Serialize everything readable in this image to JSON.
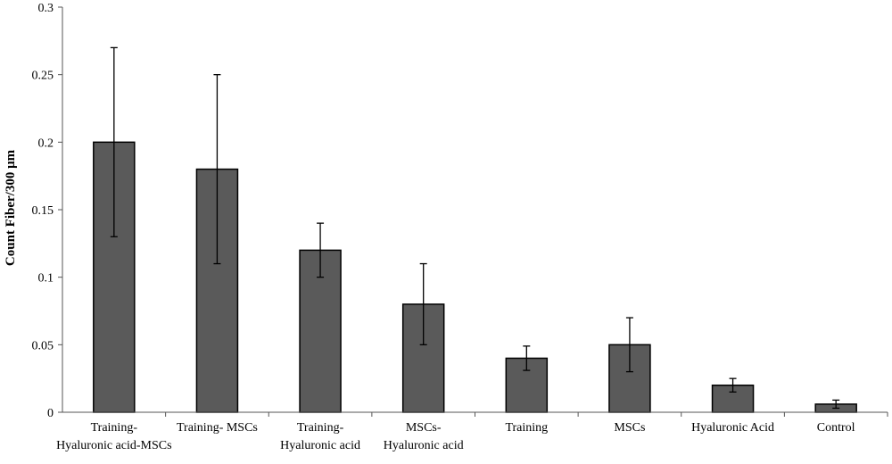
{
  "chart_data": {
    "type": "bar",
    "title": "",
    "xlabel": "",
    "ylabel": "Count Fiber/300 μm",
    "ylim": [
      0,
      0.3
    ],
    "y_ticks": [
      0,
      0.05,
      0.1,
      0.15,
      0.2,
      0.25,
      0.3
    ],
    "y_tick_labels": [
      "0",
      "0.05",
      "0.1",
      "0.15",
      "0.2",
      "0.25",
      "0.3"
    ],
    "grid": false,
    "bar_color": "#5a5a5a",
    "categories": [
      [
        "Training-",
        "Hyaluronic acid-MSCs"
      ],
      [
        "Training- MSCs"
      ],
      [
        "Training-",
        "Hyaluronic acid"
      ],
      [
        "MSCs-",
        "Hyaluronic acid"
      ],
      [
        "Training"
      ],
      [
        "MSCs"
      ],
      [
        "Hyaluronic Acid"
      ],
      [
        "Control"
      ]
    ],
    "values": [
      0.2,
      0.18,
      0.12,
      0.08,
      0.04,
      0.05,
      0.02,
      0.006
    ],
    "error_low": [
      0.13,
      0.11,
      0.1,
      0.05,
      0.031,
      0.03,
      0.015,
      0.003
    ],
    "error_high": [
      0.27,
      0.25,
      0.14,
      0.11,
      0.049,
      0.07,
      0.025,
      0.009
    ]
  }
}
